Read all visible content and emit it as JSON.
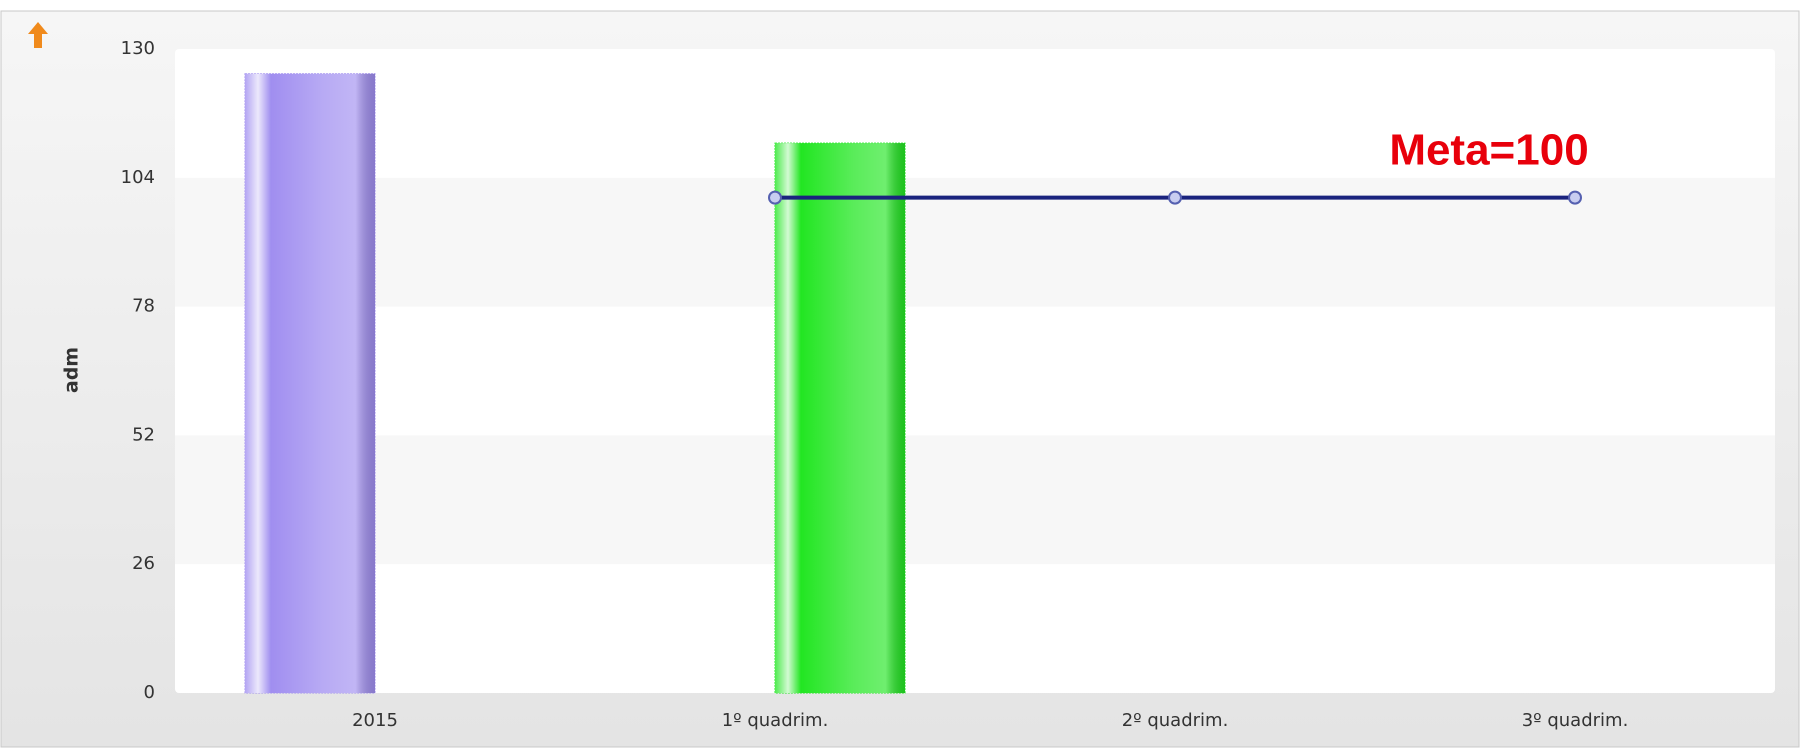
{
  "chart_data": {
    "type": "bar",
    "categories": [
      "2015",
      "1º quadrim.",
      "2º quadrim.",
      "3º quadrim."
    ],
    "series": [
      {
        "type": "bar",
        "color": "#a08ef0",
        "values": [
          125,
          null,
          null,
          null
        ]
      },
      {
        "type": "bar",
        "color": "#22e622",
        "values": [
          null,
          111,
          null,
          null
        ]
      },
      {
        "type": "line",
        "color": "#1a237e",
        "values": [
          null,
          100,
          100,
          100
        ]
      }
    ],
    "y_label": "adm",
    "annotation": "Meta=100",
    "annotation_color": "#e8000b",
    "ylim": [
      0,
      130
    ],
    "yticks": [
      0,
      26,
      52,
      78,
      104,
      130
    ],
    "grid": true
  }
}
